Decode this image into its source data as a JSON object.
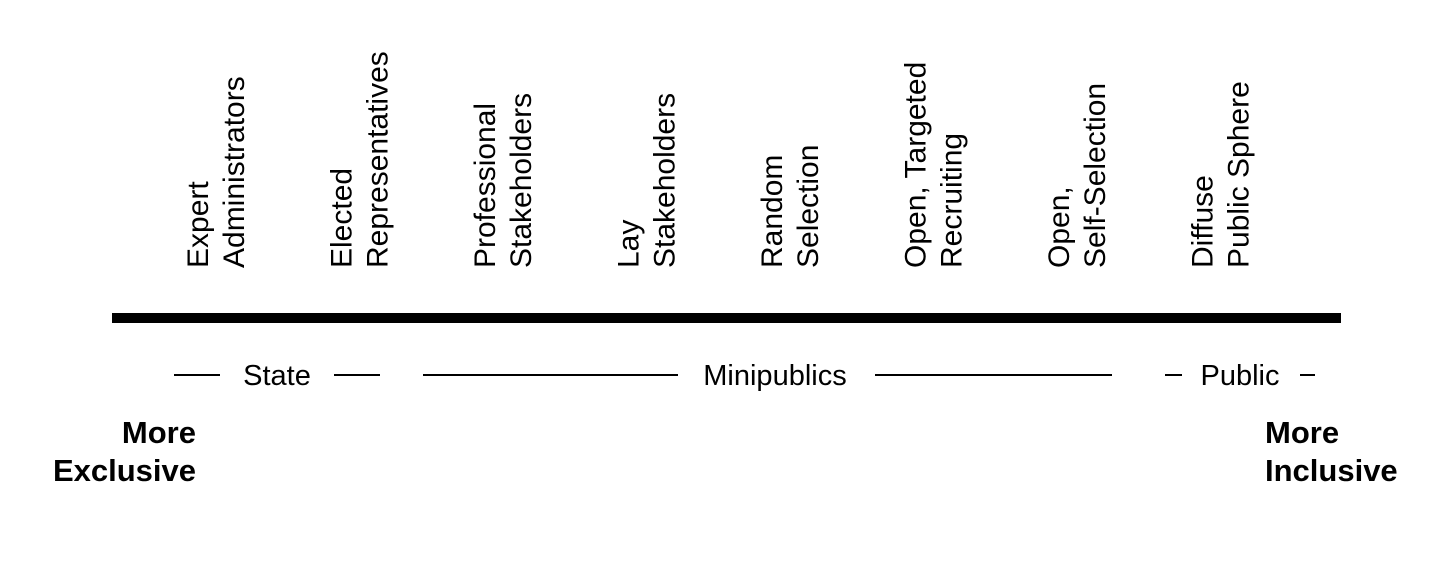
{
  "nodes": [
    {
      "lines": [
        "Expert",
        "Administrators"
      ]
    },
    {
      "lines": [
        "Elected",
        "Representatives"
      ]
    },
    {
      "lines": [
        "Professional",
        "Stakeholders"
      ]
    },
    {
      "lines": [
        "Lay",
        "Stakeholders"
      ]
    },
    {
      "lines": [
        "Random",
        "Selection"
      ]
    },
    {
      "lines": [
        "Open, Targeted",
        "Recruiting"
      ]
    },
    {
      "lines": [
        "Open,",
        "Self-Selection"
      ]
    },
    {
      "lines": [
        "Diffuse",
        "Public Sphere"
      ]
    }
  ],
  "groups": [
    {
      "label": "State"
    },
    {
      "label": "Minipublics"
    },
    {
      "label": "Public"
    }
  ],
  "ends": {
    "left": {
      "lines": [
        "More",
        "Exclusive"
      ]
    },
    "right": {
      "lines": [
        "More",
        "Inclusive"
      ]
    }
  }
}
